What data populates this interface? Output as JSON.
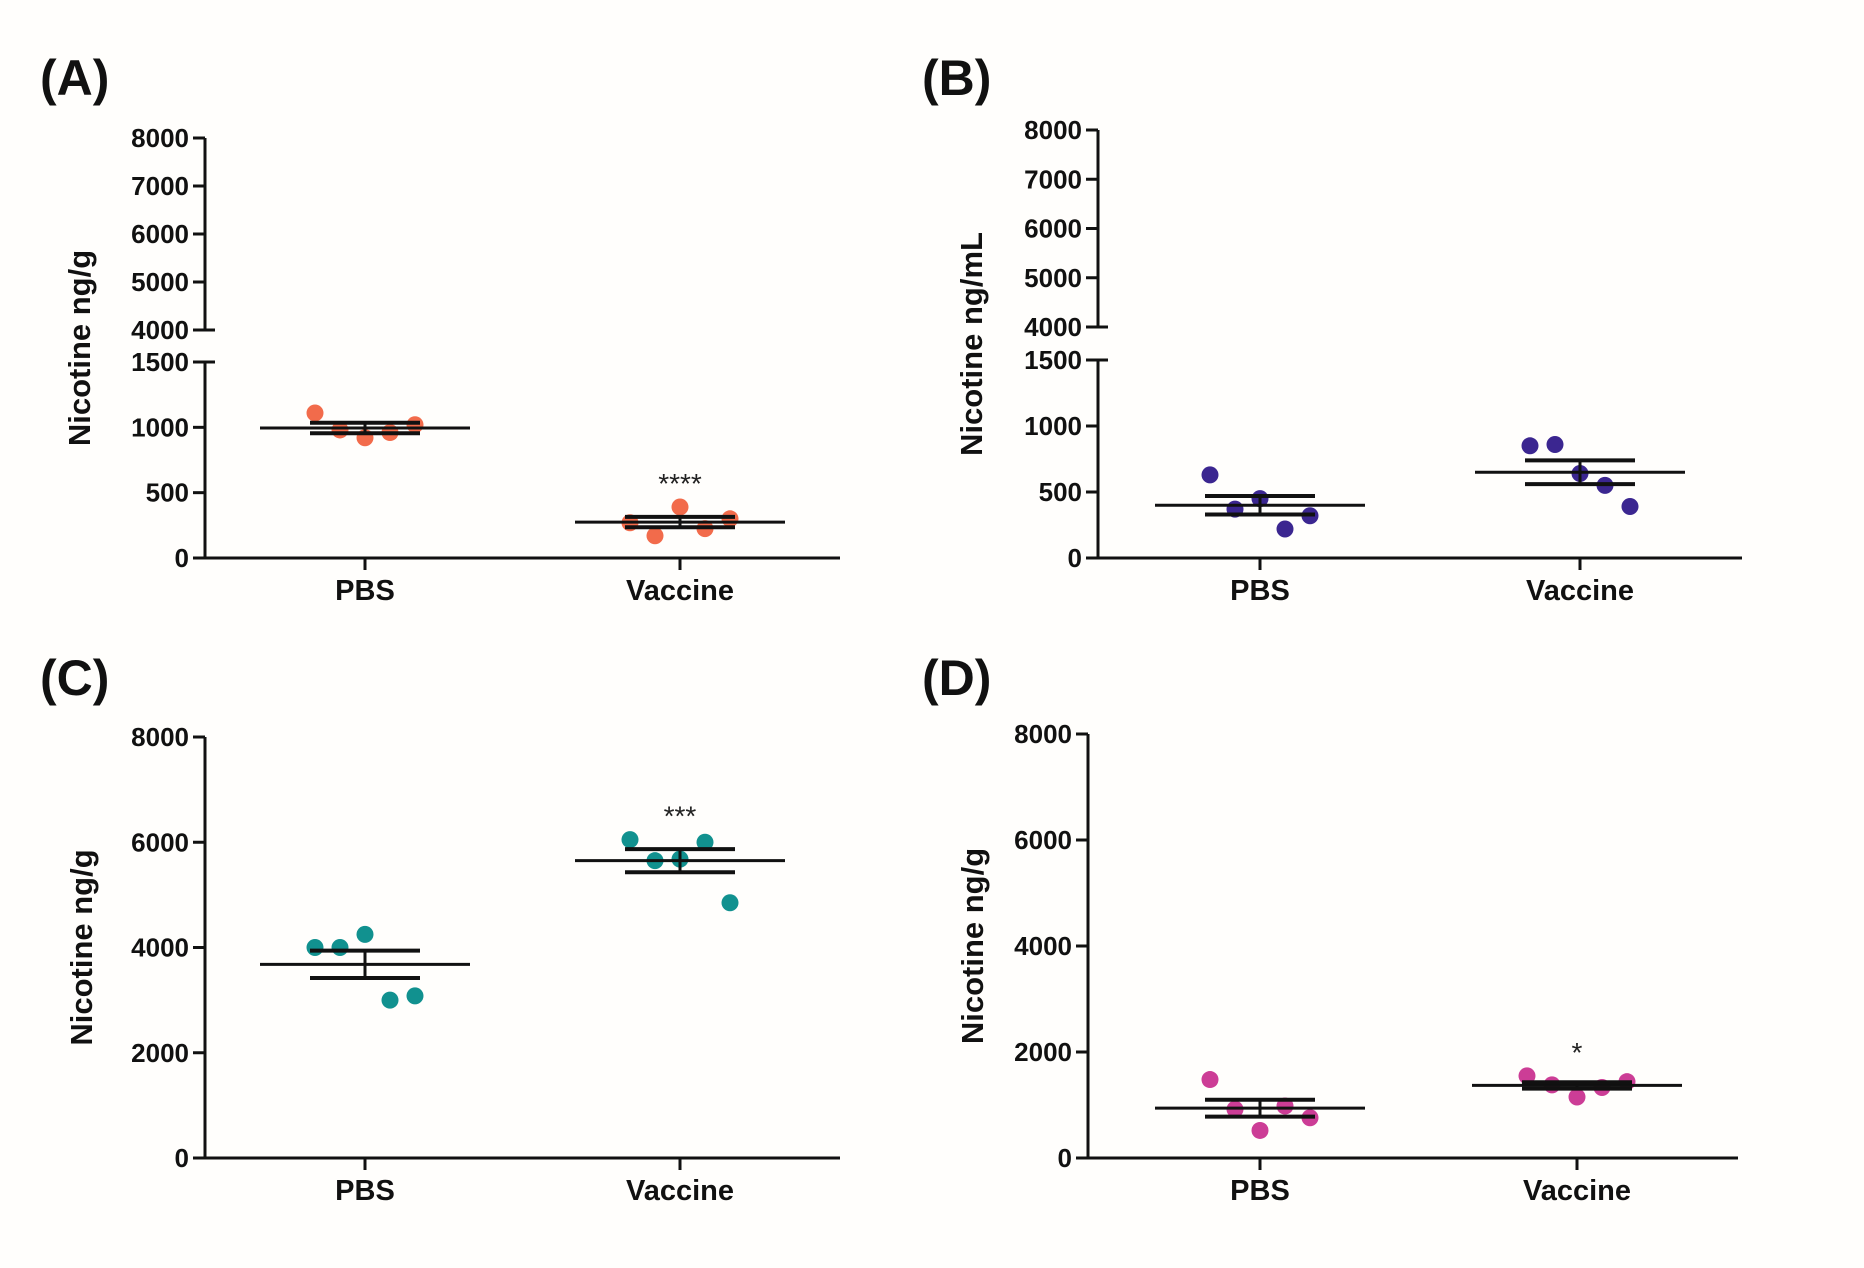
{
  "chart_data": [
    {
      "panel": "(A)",
      "type": "scatter",
      "ylabel": "Nicotine ng/g",
      "categories": [
        "PBS",
        "Vaccine"
      ],
      "axis_break": {
        "lower": [
          0,
          1500
        ],
        "upper": [
          4000,
          8000
        ]
      },
      "yticks_lower": [
        "0",
        "500",
        "1000",
        "1500"
      ],
      "yticks_upper": [
        "4000",
        "5000",
        "6000",
        "7000",
        "8000"
      ],
      "color": "#f26b4b",
      "series": [
        {
          "name": "PBS",
          "values": [
            1110,
            980,
            920,
            960,
            1020
          ],
          "mean": 995,
          "sem": 40
        },
        {
          "name": "Vaccine",
          "values": [
            270,
            170,
            390,
            225,
            300
          ],
          "mean": 275,
          "sem": 40,
          "significance": "****"
        }
      ]
    },
    {
      "panel": "(B)",
      "type": "scatter",
      "ylabel": "Nicotine ng/mL",
      "categories": [
        "PBS",
        "Vaccine"
      ],
      "axis_break": {
        "lower": [
          0,
          1500
        ],
        "upper": [
          4000,
          8000
        ]
      },
      "yticks_lower": [
        "0",
        "500",
        "1000",
        "1500"
      ],
      "yticks_upper": [
        "4000",
        "5000",
        "6000",
        "7000",
        "8000"
      ],
      "color": "#3b2690",
      "series": [
        {
          "name": "PBS",
          "values": [
            630,
            370,
            450,
            220,
            320
          ],
          "mean": 400,
          "sem": 70
        },
        {
          "name": "Vaccine",
          "values": [
            850,
            860,
            640,
            550,
            390
          ],
          "mean": 650,
          "sem": 90
        }
      ]
    },
    {
      "panel": "(C)",
      "type": "scatter",
      "ylabel": "Nicotine ng/g",
      "categories": [
        "PBS",
        "Vaccine"
      ],
      "ylim": [
        0,
        8000
      ],
      "yticks": [
        "0",
        "2000",
        "4000",
        "6000",
        "8000"
      ],
      "color": "#11918f",
      "series": [
        {
          "name": "PBS",
          "values": [
            4000,
            4000,
            4250,
            3000,
            3080
          ],
          "mean": 3680,
          "sem": 260
        },
        {
          "name": "Vaccine",
          "values": [
            6050,
            5650,
            5680,
            6000,
            4850
          ],
          "mean": 5650,
          "sem": 220,
          "significance": "***"
        }
      ]
    },
    {
      "panel": "(D)",
      "type": "scatter",
      "ylabel": "Nicotine ng/g",
      "categories": [
        "PBS",
        "Vaccine"
      ],
      "ylim": [
        0,
        8000
      ],
      "yticks": [
        "0",
        "2000",
        "4000",
        "6000",
        "8000"
      ],
      "color": "#cc3d96",
      "series": [
        {
          "name": "PBS",
          "values": [
            1480,
            920,
            520,
            980,
            760
          ],
          "mean": 940,
          "sem": 160
        },
        {
          "name": "Vaccine",
          "values": [
            1550,
            1380,
            1150,
            1330,
            1440
          ],
          "mean": 1370,
          "sem": 60,
          "significance": "*"
        }
      ]
    }
  ]
}
